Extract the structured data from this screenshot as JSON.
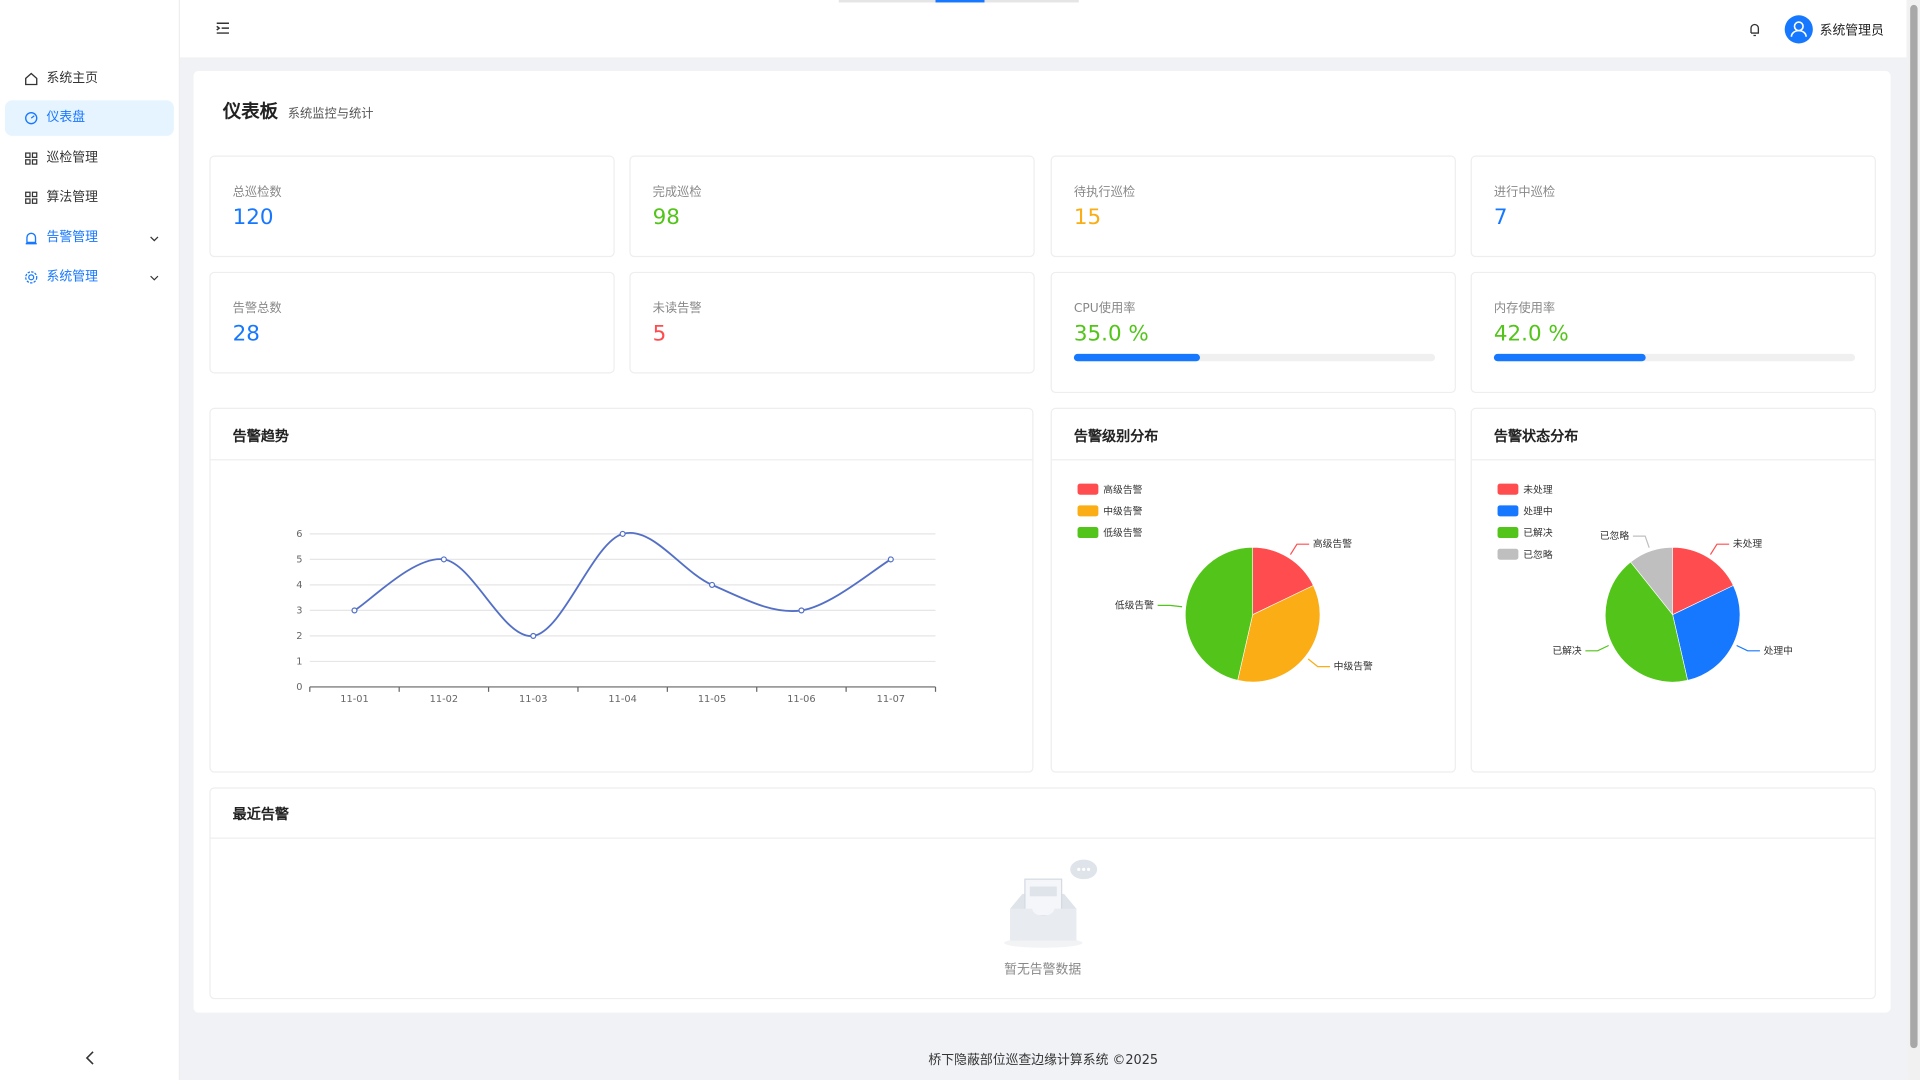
{
  "sidebar": {
    "menu": [
      "系统主页",
      "仪表盘",
      "巡检管理",
      "算法管理",
      "告警管理",
      "系统管理"
    ]
  },
  "header": {
    "user": "系统管理员"
  },
  "page": {
    "title": "仪表板",
    "subtitle": "系统监控与统计"
  },
  "stats": [
    {
      "label": "总巡检数",
      "value": 120,
      "color": "#1677ff"
    },
    {
      "label": "完成巡检",
      "value": 98,
      "color": "#52c41a"
    },
    {
      "label": "待执行巡检",
      "value": 15,
      "color": "#faad14"
    },
    {
      "label": "进行中巡检",
      "value": 7,
      "color": "#1677ff"
    },
    {
      "label": "告警总数",
      "value": 28,
      "color": "#1677ff"
    },
    {
      "label": "未读告警",
      "value": 5,
      "color": "#ff4d4f"
    },
    {
      "label": "CPU使用率",
      "value": 35,
      "value_label": "35.0 %",
      "color": "#52c41a",
      "bar_color": "#1677ff"
    },
    {
      "label": "内存使用率",
      "value": 42,
      "value_label": "42.0 %",
      "color": "#52c41a",
      "bar_color": "#1677ff"
    }
  ],
  "chart_data": [
    {
      "type": "line",
      "title": "告警趋势",
      "categories": [
        "11-01",
        "11-02",
        "11-03",
        "11-04",
        "11-05",
        "11-06",
        "11-07"
      ],
      "values": [
        3,
        5,
        2,
        6,
        4,
        3,
        5
      ],
      "color": "#5470c6",
      "ylim": [
        0,
        6
      ],
      "yticks": [
        0,
        1,
        2,
        3,
        4,
        5,
        6
      ],
      "grid": true,
      "smooth": true
    },
    {
      "type": "pie",
      "title": "告警级别分布",
      "categories": [
        "高级告警",
        "中级告警",
        "低级告警"
      ],
      "values": [
        5,
        10,
        13
      ],
      "colors": [
        "#ff4d4f",
        "#faad14",
        "#52c41a"
      ]
    },
    {
      "type": "pie",
      "title": "告警状态分布",
      "categories": [
        "未处理",
        "处理中",
        "已解决",
        "已忽略"
      ],
      "values": [
        5,
        8,
        12,
        3
      ],
      "colors": [
        "#ff4d4f",
        "#1677ff",
        "#52c41a",
        "#bfbfbf"
      ]
    }
  ],
  "recent": {
    "title": "最近告警",
    "empty": "暂无告警数据"
  },
  "footer": "桥下隐蔽部位巡查边缘计算系统 ©2025"
}
